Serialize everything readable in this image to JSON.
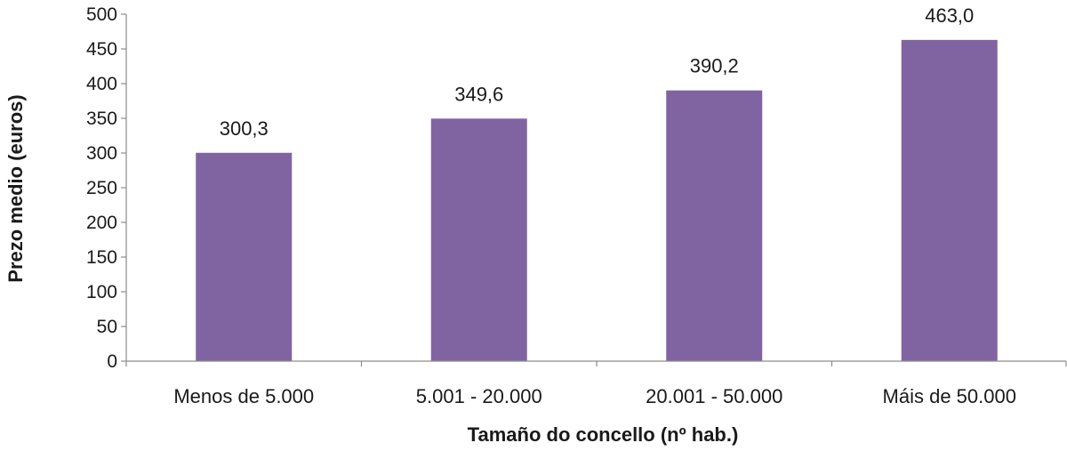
{
  "chart_data": {
    "type": "bar",
    "title": "",
    "xlabel": "Tamaño do concello (nº hab.)",
    "ylabel": "Prezo medio (euros)",
    "categories": [
      "Menos de 5.000",
      "5.001 - 20.000",
      "20.001 - 50.000",
      "Máis de 50.000"
    ],
    "values": [
      300.3,
      349.6,
      390.2,
      463.0
    ],
    "value_labels": [
      "300,3",
      "349,6",
      "390,2",
      "463,0"
    ],
    "ylim": [
      0,
      500
    ],
    "yticks": [
      0,
      50,
      100,
      150,
      200,
      250,
      300,
      350,
      400,
      450,
      500
    ],
    "grid": false,
    "legend": "none",
    "colors": {
      "bar": "#8064a2",
      "axis": "#8c8c8c",
      "text": "#1a1a1a"
    }
  }
}
